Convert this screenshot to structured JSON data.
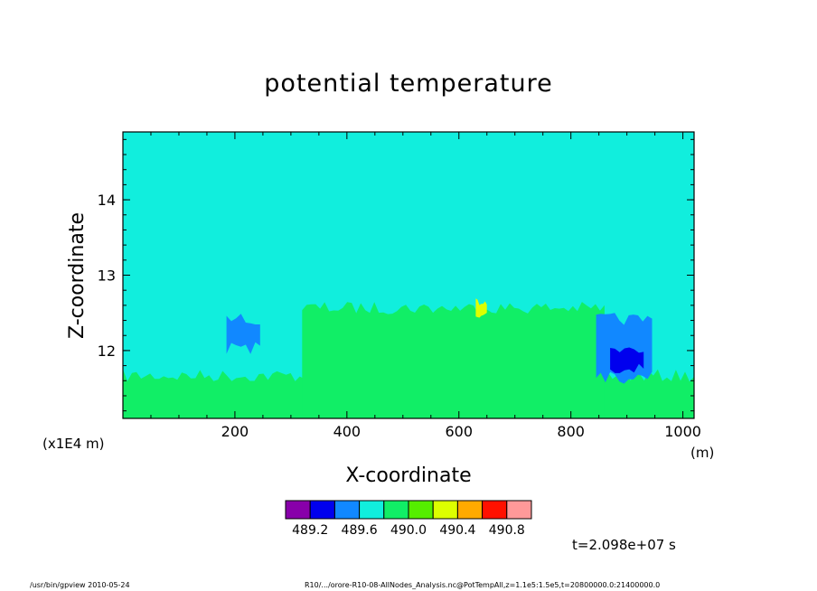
{
  "chart_data": {
    "type": "heatmap",
    "title": "potential temperature",
    "xlabel": "X-coordinate",
    "ylabel": "Z-coordinate",
    "x_unit": "(m)",
    "y_unit": "(x1E4 m)",
    "xlim": [
      0,
      1020
    ],
    "ylim": [
      11.1,
      14.9
    ],
    "x_ticks": [
      200,
      400,
      600,
      800,
      1000
    ],
    "y_ticks": [
      12,
      13,
      14
    ],
    "colorbar": {
      "levels": [
        "489.2",
        "489.6",
        "490.0",
        "490.4",
        "490.8"
      ],
      "colors": [
        "#8800aa",
        "#0000ee",
        "#1188ff",
        "#11eedd",
        "#11ee66",
        "#55ee00",
        "#ddff00",
        "#ffaa00",
        "#ff1100",
        "#ff9999"
      ]
    },
    "background_value_color": "#11eedd",
    "regions": [
      {
        "level": "490.0",
        "x": [
          0,
          1020
        ],
        "z": [
          11.1,
          11.75
        ]
      },
      {
        "level": "490.0",
        "x": [
          320,
          860
        ],
        "z": [
          11.1,
          12.65
        ]
      },
      {
        "level": "489.6",
        "x": [
          185,
          245
        ],
        "z": [
          11.95,
          12.5
        ]
      },
      {
        "level": "489.6",
        "x": [
          845,
          945
        ],
        "z": [
          11.55,
          12.5
        ]
      },
      {
        "level": "489.2",
        "x": [
          870,
          930
        ],
        "z": [
          11.7,
          12.05
        ]
      },
      {
        "level": "490.2",
        "x": [
          630,
          650
        ],
        "z": [
          12.4,
          12.7
        ]
      }
    ],
    "grid": false
  },
  "annotations": {
    "time": "t=2.098e+07 s",
    "footer_left": "/usr/bin/gpview   2010-05-24",
    "footer_right": "R10/.../orore-R10-08-AllNodes_Analysis.nc@PotTempAll,z=1.1e5:1.5e5,t=20800000.0:21400000.0"
  }
}
